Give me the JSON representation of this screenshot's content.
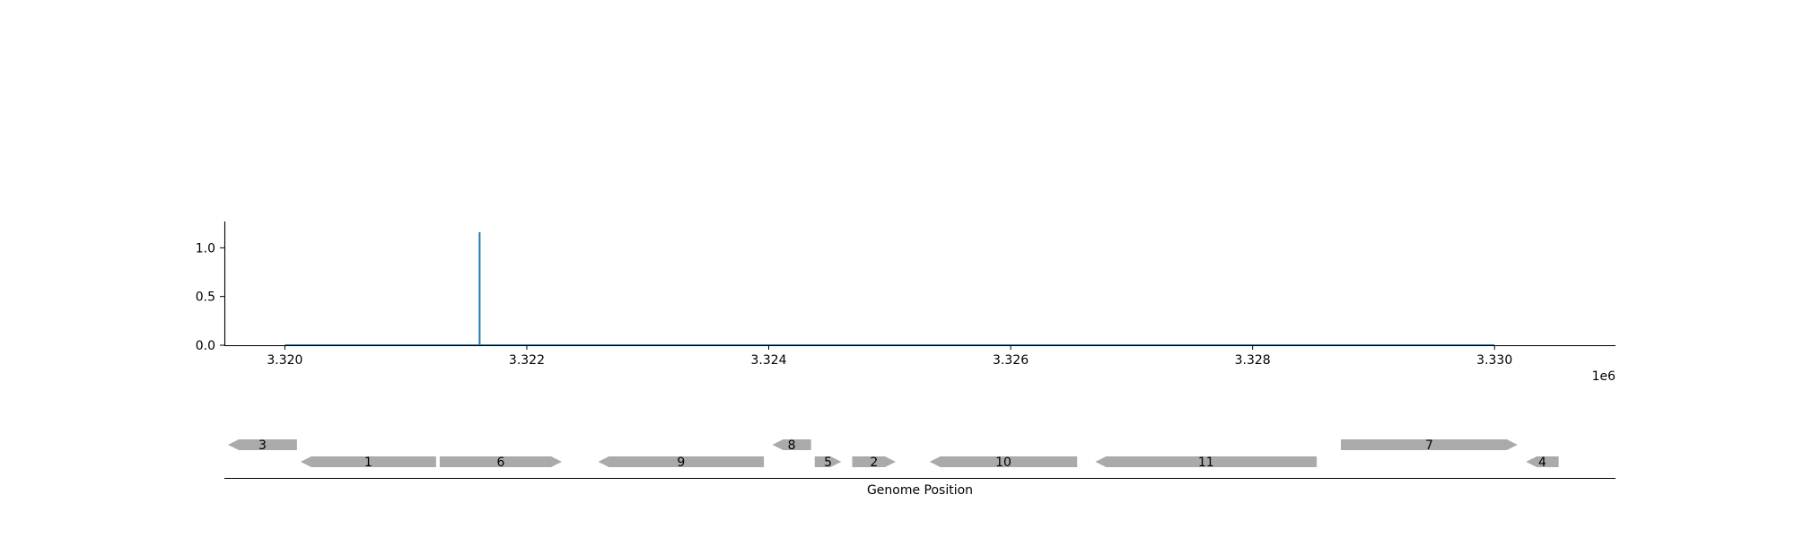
{
  "chart_data": {
    "type": "line",
    "x_offset_label": "1e6",
    "xlim": [
      3.3195,
      3.331
    ],
    "ylim": [
      0.0,
      1.27
    ],
    "x_ticks": [
      {
        "value": 3.32,
        "label": "3.320"
      },
      {
        "value": 3.322,
        "label": "3.322"
      },
      {
        "value": 3.324,
        "label": "3.324"
      },
      {
        "value": 3.326,
        "label": "3.326"
      },
      {
        "value": 3.328,
        "label": "3.328"
      },
      {
        "value": 3.33,
        "label": "3.330"
      }
    ],
    "y_ticks": [
      {
        "value": 0.0,
        "label": "0.0"
      },
      {
        "value": 0.5,
        "label": "0.5"
      },
      {
        "value": 1.0,
        "label": "1.0"
      }
    ],
    "series": [
      {
        "color": "#1f77b4",
        "x": [
          3.32,
          3.32161,
          3.32161,
          3.32161,
          3.33
        ],
        "y": [
          0.0,
          0.0,
          1.16,
          0.0,
          0.0
        ]
      }
    ],
    "grid": false,
    "xlabel": "Genome Position",
    "genes_color": "#aaaaaa",
    "genes": [
      {
        "label": "3",
        "start": 3.31953,
        "end": 3.3201,
        "strand": -1,
        "row": 1
      },
      {
        "label": "1",
        "start": 3.32013,
        "end": 3.32125,
        "strand": -1,
        "row": 0
      },
      {
        "label": "6",
        "start": 3.32128,
        "end": 3.32229,
        "strand": 1,
        "row": 0
      },
      {
        "label": "9",
        "start": 3.32259,
        "end": 3.32396,
        "strand": -1,
        "row": 0
      },
      {
        "label": "8",
        "start": 3.32403,
        "end": 3.32435,
        "strand": -1,
        "row": 1
      },
      {
        "label": "5",
        "start": 3.32438,
        "end": 3.3246,
        "strand": 1,
        "row": 0
      },
      {
        "label": "2",
        "start": 3.32469,
        "end": 3.32505,
        "strand": 1,
        "row": 0
      },
      {
        "label": "10",
        "start": 3.32533,
        "end": 3.32655,
        "strand": -1,
        "row": 0
      },
      {
        "label": "11",
        "start": 3.3267,
        "end": 3.32853,
        "strand": -1,
        "row": 0
      },
      {
        "label": "7",
        "start": 3.32873,
        "end": 3.33019,
        "strand": 1,
        "row": 1
      },
      {
        "label": "4",
        "start": 3.33026,
        "end": 3.33053,
        "strand": -1,
        "row": 0
      }
    ]
  }
}
